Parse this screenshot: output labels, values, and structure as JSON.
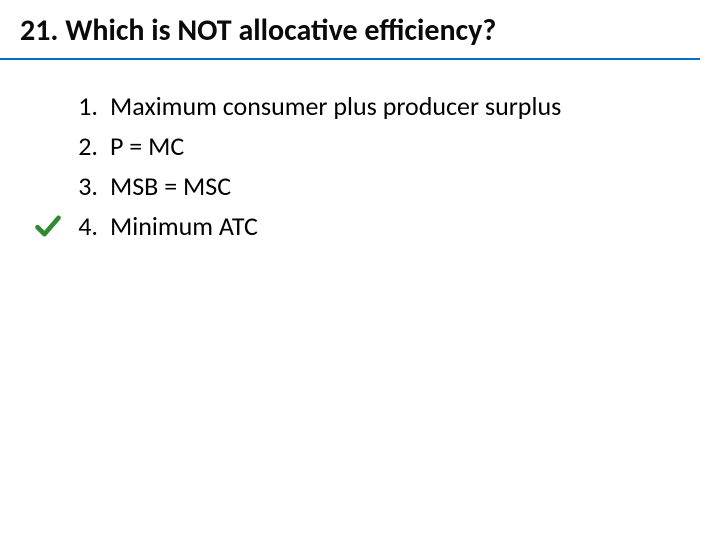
{
  "slide": {
    "title": "21. Which is NOT allocative efficiency?",
    "title_fontsize": 30,
    "title_color": "#0a0a0a",
    "underline_color": "#0070c0",
    "background_color": "#ffffff",
    "body_fontsize": 26,
    "body_color": "#000000",
    "line_height": 40,
    "check_color": "#2e8b2e",
    "check_stroke_width": 4,
    "checked_index": 3,
    "items": [
      {
        "number": "1.",
        "text": "Maximum consumer plus producer surplus"
      },
      {
        "number": "2.",
        "text": "P = MC"
      },
      {
        "number": "3.",
        "text": "MSB = MSC"
      },
      {
        "number": "4.",
        "text": "Minimum ATC"
      }
    ]
  }
}
